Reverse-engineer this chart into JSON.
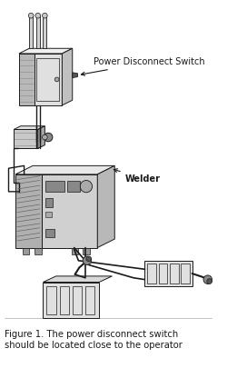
{
  "caption_line1": "Figure 1. The power disconnect switch",
  "caption_line2": "should be located close to the operator",
  "label_power_disconnect": "Power Disconnect Switch",
  "label_welder": "Welder",
  "bg_color": "#ffffff",
  "lc": "#1a1a1a",
  "caption_fontsize": 7.2,
  "label_fontsize": 7.0,
  "fig_width": 2.5,
  "fig_height": 4.16,
  "dpi": 100
}
